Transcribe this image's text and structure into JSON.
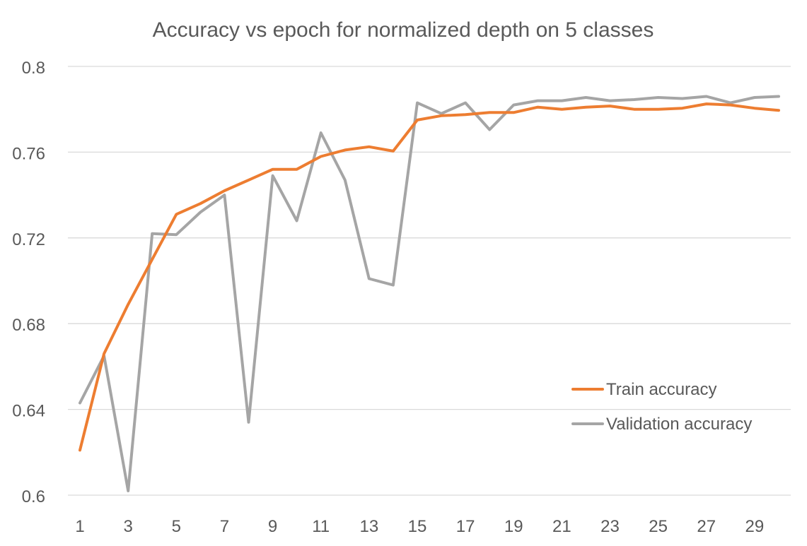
{
  "chart_data": {
    "type": "line",
    "title": "Accuracy vs epoch for normalized depth on 5 classes",
    "xlabel": "",
    "ylabel": "",
    "x": [
      1,
      2,
      3,
      4,
      5,
      6,
      7,
      8,
      9,
      10,
      11,
      12,
      13,
      14,
      15,
      16,
      17,
      18,
      19,
      20,
      21,
      22,
      23,
      24,
      25,
      26,
      27,
      28,
      29,
      30
    ],
    "x_tick_labels": [
      "1",
      "3",
      "5",
      "7",
      "9",
      "11",
      "13",
      "15",
      "17",
      "19",
      "21",
      "23",
      "25",
      "27",
      "29"
    ],
    "ylim": [
      0.6,
      0.8
    ],
    "y_ticks": [
      0.6,
      0.64,
      0.68,
      0.72,
      0.76,
      0.8
    ],
    "y_tick_labels": [
      "0.6",
      "0.64",
      "0.68",
      "0.72",
      "0.76",
      "0.8"
    ],
    "grid": true,
    "legend_position": "right",
    "series": [
      {
        "name": "Train accuracy",
        "color": "#ED7D31",
        "values": [
          0.621,
          0.666,
          0.689,
          0.71,
          0.731,
          0.736,
          0.742,
          0.747,
          0.752,
          0.752,
          0.758,
          0.761,
          0.7625,
          0.7605,
          0.775,
          0.777,
          0.7775,
          0.7785,
          0.7785,
          0.781,
          0.78,
          0.781,
          0.7815,
          0.78,
          0.78,
          0.7805,
          0.7825,
          0.782,
          0.7805,
          0.7795
        ]
      },
      {
        "name": "Validation accuracy",
        "color": "#A5A5A5",
        "values": [
          0.643,
          0.665,
          0.602,
          0.722,
          0.7215,
          0.732,
          0.74,
          0.634,
          0.749,
          0.728,
          0.769,
          0.747,
          0.701,
          0.698,
          0.783,
          0.778,
          0.783,
          0.7705,
          0.782,
          0.784,
          0.784,
          0.7855,
          0.784,
          0.7845,
          0.7855,
          0.785,
          0.786,
          0.783,
          0.7855,
          0.786
        ]
      }
    ]
  }
}
